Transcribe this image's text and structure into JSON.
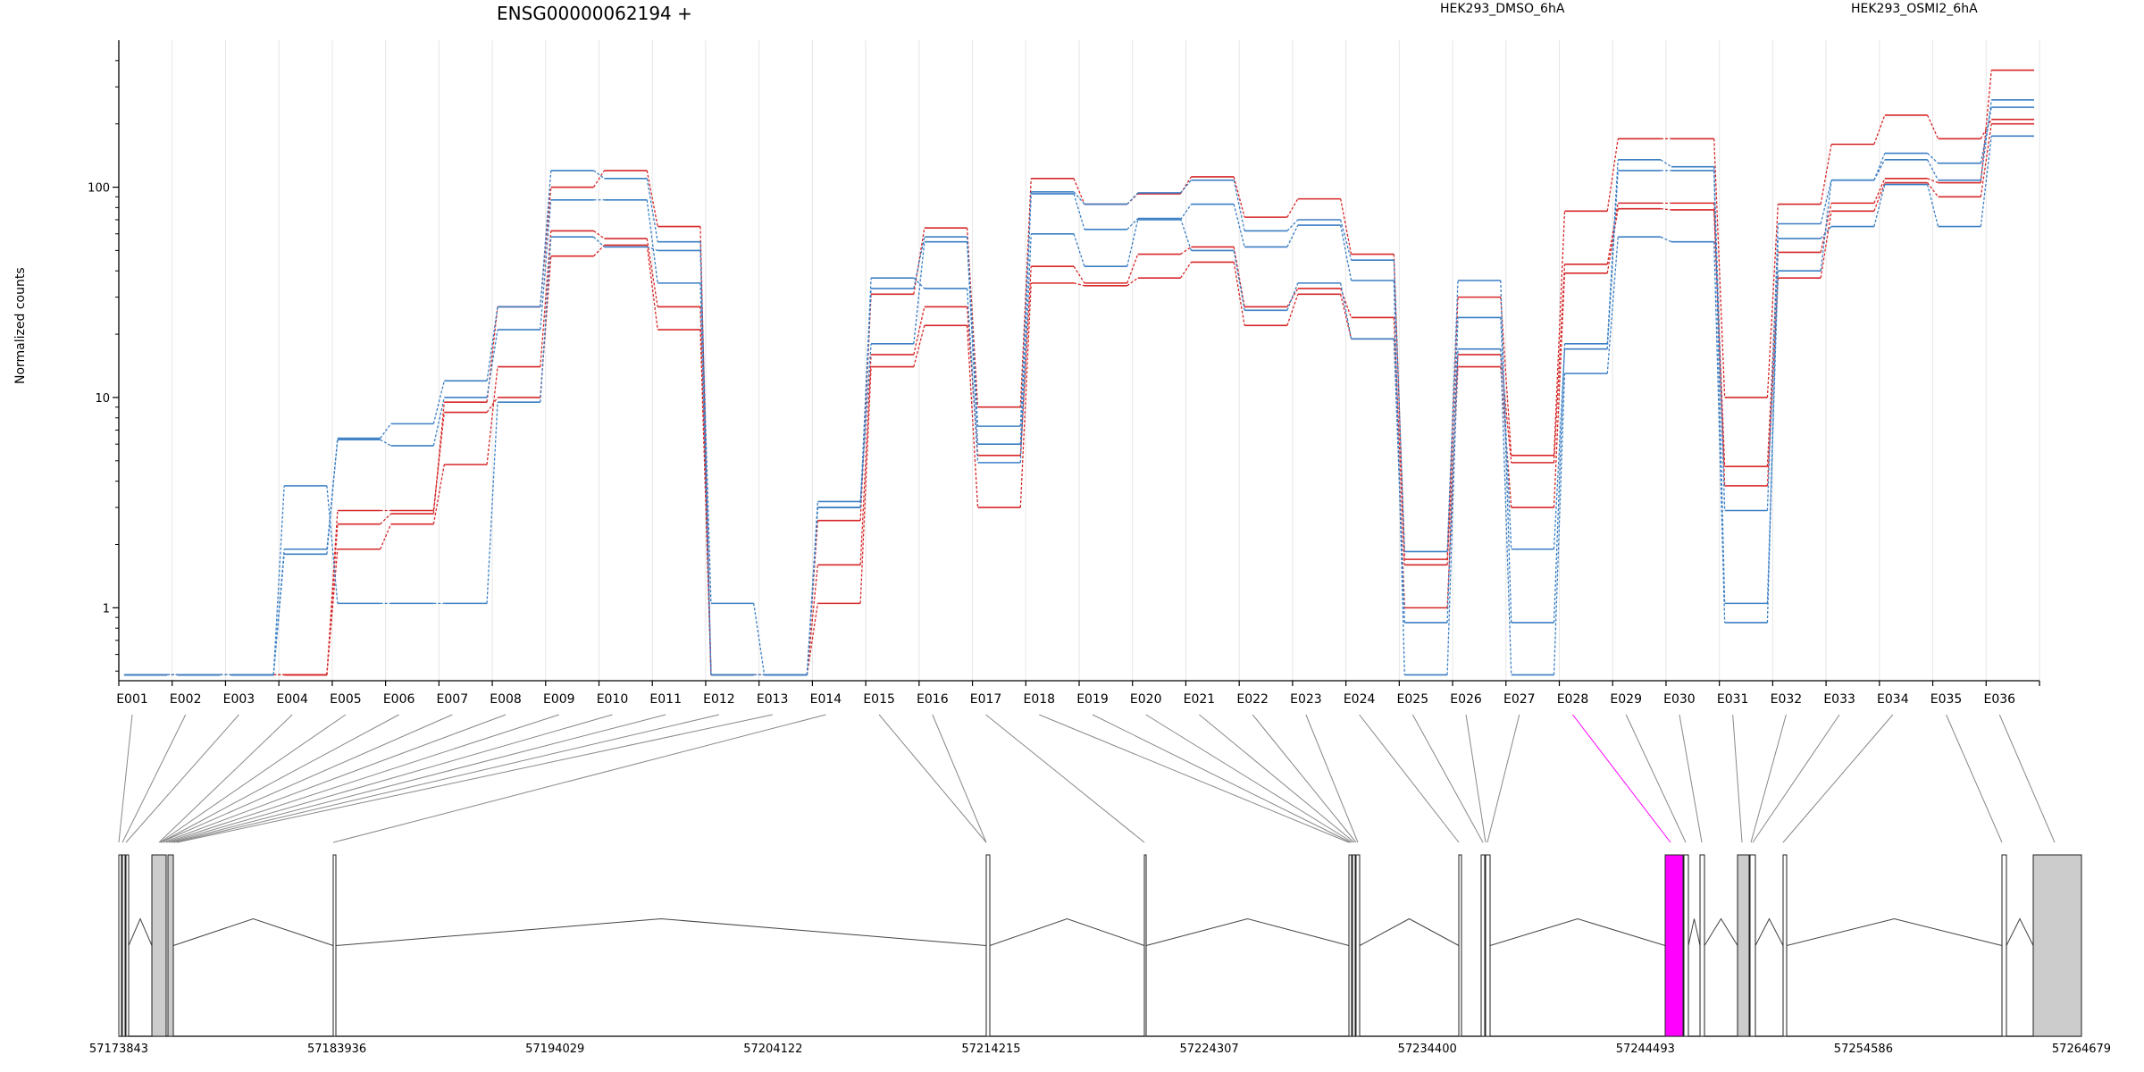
{
  "title": "ENSG00000062194 +",
  "ylabel": "Normalized counts",
  "legend": [
    {
      "name": "HEK293_DMSO_6hA",
      "color": "#d62728"
    },
    {
      "name": "HEK293_OSMI2_6hA",
      "color": "#3b7fc4"
    }
  ],
  "colors": {
    "dmso": "#d62728",
    "osmi": "#3b7fc4",
    "highlight": "#ff00ff",
    "exon_fill": "#cccccc",
    "grid": "#e6e6e6"
  },
  "chart_data": {
    "type": "line",
    "yscale": "log",
    "ylim": [
      0.45,
      500
    ],
    "yticks": [
      1,
      10,
      100
    ],
    "ytick_labels": [
      "1",
      "10",
      "100"
    ],
    "categories": [
      "E001",
      "E002",
      "E003",
      "E004",
      "E005",
      "E006",
      "E007",
      "E008",
      "E009",
      "E010",
      "E011",
      "E012",
      "E013",
      "E014",
      "E015",
      "E016",
      "E017",
      "E018",
      "E019",
      "E020",
      "E021",
      "E022",
      "E023",
      "E024",
      "E025",
      "E026",
      "E027",
      "E028",
      "E029",
      "E030",
      "E031",
      "E032",
      "E033",
      "E034",
      "E035",
      "E036"
    ],
    "series": [
      {
        "group": "HEK293_DMSO_6hA",
        "values": [
          0.48,
          0.48,
          0.48,
          0.48,
          2.9,
          2.9,
          8.5,
          10,
          47,
          53,
          21,
          0.48,
          0.48,
          1.05,
          14,
          22,
          3.0,
          35,
          34,
          37,
          44,
          22,
          31,
          19,
          1.0,
          14,
          3.0,
          39,
          79,
          78,
          3.8,
          37,
          77,
          105,
          90,
          200
        ]
      },
      {
        "group": "HEK293_DMSO_6hA",
        "values": [
          0.48,
          0.48,
          0.48,
          0.48,
          1.9,
          2.5,
          4.8,
          14,
          62,
          57,
          27,
          0.48,
          0.48,
          1.6,
          16,
          27,
          5.3,
          42,
          35,
          48,
          52,
          27,
          33,
          24,
          1.6,
          16,
          4.9,
          43,
          84,
          84,
          4.7,
          49,
          84,
          110,
          105,
          360
        ]
      },
      {
        "group": "HEK293_DMSO_6hA",
        "values": [
          0.48,
          0.48,
          0.48,
          0.48,
          2.5,
          2.8,
          9.5,
          27,
          100,
          120,
          65,
          0.48,
          0.48,
          2.6,
          31,
          64,
          9.0,
          110,
          83,
          93,
          112,
          72,
          88,
          48,
          1.7,
          30,
          5.3,
          77,
          170,
          170,
          10,
          83,
          160,
          220,
          170,
          210
        ]
      },
      {
        "group": "HEK293_OSMI2_6hA",
        "values": [
          0.48,
          0.48,
          0.48,
          3.8,
          1.05,
          1.05,
          1.05,
          9.5,
          58,
          52,
          50,
          1.05,
          0.48,
          3.0,
          37,
          33,
          4.9,
          60,
          42,
          70,
          83,
          52,
          66,
          36,
          0.48,
          17,
          0.48,
          13,
          58,
          55,
          0.85,
          57,
          65,
          103,
          65,
          175
        ]
      },
      {
        "group": "HEK293_OSMI2_6hA",
        "values": [
          0.48,
          0.48,
          0.48,
          1.9,
          6.3,
          5.9,
          10,
          21,
          87,
          87,
          35,
          0.48,
          0.48,
          3.2,
          18,
          55,
          6.0,
          93,
          63,
          71,
          50,
          26,
          35,
          19,
          0.85,
          24,
          1.9,
          17,
          120,
          120,
          1.05,
          40,
          108,
          135,
          108,
          260
        ]
      },
      {
        "group": "HEK293_OSMI2_6hA",
        "values": [
          0.48,
          0.48,
          0.48,
          1.8,
          6.4,
          7.5,
          12,
          27,
          120,
          110,
          55,
          0.48,
          0.48,
          3.0,
          33,
          58,
          7.3,
          95,
          83,
          94,
          108,
          62,
          70,
          45,
          1.85,
          36,
          0.85,
          18,
          135,
          125,
          2.9,
          67,
          108,
          145,
          130,
          240
        ]
      }
    ],
    "gene_model": {
      "coord_ticks": [
        "57173843",
        "57183936",
        "57194029",
        "57204122",
        "57214215",
        "57224307",
        "57234400",
        "57244493",
        "57254586",
        "57264679"
      ]
    }
  }
}
